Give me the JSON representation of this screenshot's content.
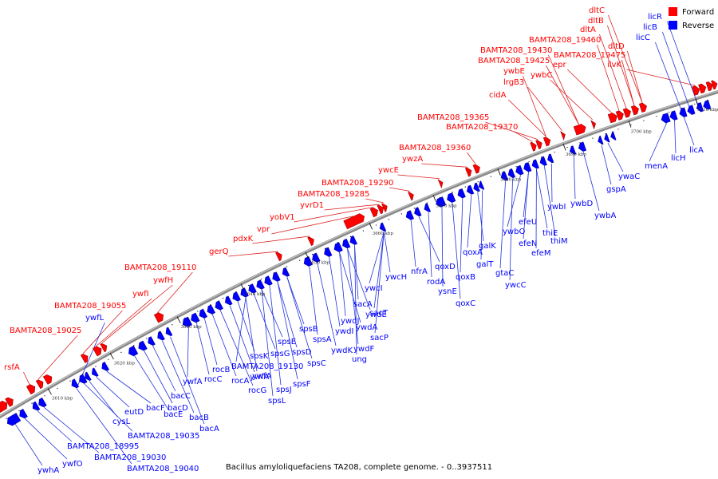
{
  "caption": "Bacillus amyloliquefaciens TA208, complete genome. - 0..3937511",
  "legend": [
    {
      "label": "Forward",
      "color": "#ff0000"
    },
    {
      "label": "Reverse",
      "color": "#0000ff"
    }
  ],
  "colors": {
    "forward": "#ff0000",
    "reverse": "#0000ff",
    "forward_line": "#dd2222",
    "reverse_line": "#2233dd",
    "backbone": "#888888"
  },
  "scale_ticks": [
    "3610 kbp",
    "3620 kbp",
    "3630 kbp",
    "3640 kbp",
    "3650 kbp",
    "3660 kbp",
    "3670 kbp",
    "3680 kbp",
    "3690 kbp",
    "3700 kbp",
    "3710 kbp"
  ],
  "forward_labels": [
    "rsfA",
    "BAMTA208_19025",
    "BAMTA208_19055",
    "ywfI",
    "ywfH",
    "BAMTA208_19110",
    "gerQ",
    "pdxK",
    "vpr",
    "yobV1",
    "yvrD1",
    "BAMTA208_19285",
    "BAMTA208_19290",
    "ywcE",
    "ywzA",
    "BAMTA208_19360",
    "BAMTA208_19370",
    "BAMTA208_19365",
    "cidA",
    "lrgB3",
    "ywbE",
    "BAMTA208_19425",
    "BAMTA208_19430",
    "ywbC",
    "epr",
    "BAMTA208_19460",
    "dltA",
    "dltB",
    "dltC",
    "BAMTA208_19475",
    "dltD",
    "ilvK"
  ],
  "reverse_labels": [
    "ywhA",
    "ywfO",
    "BAMTA208_18995",
    "BAMTA208_19030",
    "BAMTA208_19040",
    "BAMTA208_19035",
    "cysL",
    "eutD",
    "bacF",
    "bacE",
    "bacD",
    "bacC",
    "bacB",
    "bacA",
    "ywfL",
    "ywfA",
    "rocC",
    "rocB",
    "rocA",
    "rocG",
    "ywfA",
    "spsK",
    "BAMTA208_19130",
    "ywfA",
    "spsG",
    "spsL",
    "spsJ",
    "spsF",
    "spsE",
    "spsD",
    "spsB",
    "spsC",
    "spsA",
    "ywdK",
    "ywdI",
    "ywdJ",
    "ywdF",
    "ung",
    "ywdA",
    "ywdE",
    "sacA",
    "sacP",
    "sacT",
    "ywcI",
    "ywcH",
    "nfrA",
    "qoxD",
    "rodA",
    "ysnE",
    "qoxC",
    "qoxB",
    "qoxA",
    "galK",
    "galT",
    "gtaC",
    "ywcC",
    "ywbO",
    "efeN",
    "efeM",
    "efeU",
    "thiE",
    "thiM",
    "ywbI",
    "ywbD",
    "ywbA",
    "gspA",
    "ywaC",
    "menA",
    "licH",
    "licA",
    "licC",
    "licB",
    "licR"
  ]
}
